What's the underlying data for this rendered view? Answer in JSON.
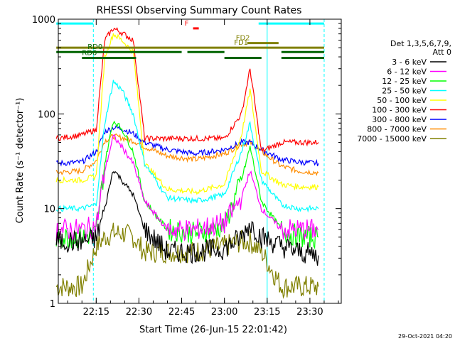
{
  "chart_data": {
    "type": "line",
    "title": "RHESSI Observing Summary Count Rates",
    "xlabel": "Start Time (26-Jun-15 22:01:42)",
    "ylabel": "Count Rate (s⁻¹ detector⁻¹)",
    "y_scale": "log",
    "xlim": [
      "22:01:42",
      "23:41:00"
    ],
    "ylim": [
      1,
      1000
    ],
    "x_ticks": [
      "22:15",
      "22:30",
      "22:45",
      "23:00",
      "23:15",
      "23:30"
    ],
    "y_ticks": [
      "1",
      "10",
      "100",
      "1000"
    ],
    "legend_title": "Det 1,3,5,6,7,9,",
    "legend_subtitle": "Att 0",
    "legend_position": "right",
    "timestamp": "29-Oct-2021 04:20",
    "series": [
      {
        "name": "3 - 6 keV",
        "color": "#000000",
        "x": [
          "22:01",
          "22:10",
          "22:15",
          "22:18",
          "22:21",
          "22:24",
          "22:28",
          "22:32",
          "22:40",
          "22:50",
          "23:00",
          "23:06",
          "23:09",
          "23:13",
          "23:20",
          "23:26",
          "23:33"
        ],
        "y": [
          4.5,
          4.5,
          4.8,
          10,
          26,
          20,
          14,
          6,
          3.5,
          3.5,
          3.8,
          5,
          7,
          5,
          4,
          3.5,
          3.2
        ]
      },
      {
        "name": "6 - 12 keV",
        "color": "#ff00ff",
        "x": [
          "22:01",
          "22:10",
          "22:15",
          "22:18",
          "22:21",
          "22:24",
          "22:28",
          "22:32",
          "22:40",
          "22:50",
          "23:00",
          "23:06",
          "23:09",
          "23:13",
          "23:20",
          "23:26",
          "23:33"
        ],
        "y": [
          6,
          6,
          6.5,
          25,
          58,
          45,
          30,
          12,
          6,
          6,
          7,
          13,
          25,
          10,
          6,
          6,
          6
        ]
      },
      {
        "name": "12 - 25 keV",
        "color": "#00ff00",
        "x": [
          "22:01",
          "22:10",
          "22:15",
          "22:18",
          "22:21",
          "22:24",
          "22:28",
          "22:32",
          "22:40",
          "22:50",
          "23:00",
          "23:06",
          "23:09",
          "23:13",
          "23:20",
          "23:26",
          "23:33"
        ],
        "y": [
          5,
          5,
          5.5,
          30,
          85,
          70,
          40,
          12,
          6,
          5.5,
          6.5,
          20,
          45,
          12,
          6,
          5,
          5
        ]
      },
      {
        "name": "25 - 50 keV",
        "color": "#00ffff",
        "x": [
          "22:01",
          "22:10",
          "22:15",
          "22:18",
          "22:21",
          "22:24",
          "22:28",
          "22:32",
          "22:40",
          "22:50",
          "23:00",
          "23:06",
          "23:09",
          "23:13",
          "23:20",
          "23:26",
          "23:33"
        ],
        "y": [
          10,
          10,
          11,
          80,
          220,
          180,
          100,
          30,
          13,
          12,
          14,
          40,
          80,
          20,
          11,
          10,
          10
        ]
      },
      {
        "name": "50 - 100 keV",
        "color": "#ffff00",
        "x": [
          "22:01",
          "22:10",
          "22:15",
          "22:18",
          "22:21",
          "22:24",
          "22:28",
          "22:32",
          "22:40",
          "22:50",
          "23:00",
          "23:06",
          "23:09",
          "23:13",
          "23:20",
          "23:26",
          "23:33"
        ],
        "y": [
          20,
          20,
          22,
          400,
          700,
          600,
          450,
          30,
          16,
          15,
          18,
          60,
          180,
          25,
          18,
          17,
          17
        ]
      },
      {
        "name": "100 - 300 keV",
        "color": "#ff0000",
        "x": [
          "22:01",
          "22:10",
          "22:15",
          "22:18",
          "22:21",
          "22:24",
          "22:28",
          "22:32",
          "22:40",
          "22:50",
          "23:00",
          "23:06",
          "23:09",
          "23:13",
          "23:20",
          "23:26",
          "23:33"
        ],
        "y": [
          55,
          60,
          68,
          600,
          800,
          720,
          600,
          55,
          55,
          55,
          55,
          100,
          300,
          40,
          50,
          50,
          50
        ]
      },
      {
        "name": "300 - 800 keV",
        "color": "#0000ff",
        "x": [
          "22:01",
          "22:10",
          "22:15",
          "22:18",
          "22:21",
          "22:24",
          "22:28",
          "22:32",
          "22:40",
          "22:50",
          "23:00",
          "23:06",
          "23:09",
          "23:13",
          "23:20",
          "23:26",
          "23:33"
        ],
        "y": [
          30,
          31,
          40,
          65,
          72,
          70,
          62,
          50,
          42,
          38,
          42,
          50,
          50,
          42,
          33,
          31,
          30
        ]
      },
      {
        "name": "800 - 7000 keV",
        "color": "#ff8c00",
        "x": [
          "22:01",
          "22:10",
          "22:15",
          "22:18",
          "22:21",
          "22:24",
          "22:28",
          "22:32",
          "22:40",
          "22:50",
          "23:00",
          "23:06",
          "23:09",
          "23:13",
          "23:20",
          "23:26",
          "23:33"
        ],
        "y": [
          24,
          25,
          32,
          52,
          58,
          56,
          52,
          45,
          36,
          33,
          38,
          48,
          50,
          40,
          28,
          25,
          24
        ]
      },
      {
        "name": "7000 - 15000 keV",
        "color": "#808000",
        "x": [
          "22:01",
          "22:10",
          "22:15",
          "22:18",
          "22:21",
          "22:24",
          "22:28",
          "22:32",
          "22:40",
          "22:50",
          "23:00",
          "23:06",
          "23:09",
          "23:13",
          "23:20",
          "23:26",
          "23:33"
        ],
        "y": [
          1.5,
          1.5,
          4,
          5,
          5.5,
          5.5,
          5,
          3.5,
          3.5,
          3.5,
          4,
          4.5,
          4.5,
          3.5,
          1.5,
          1.5,
          1.5
        ]
      }
    ],
    "flag_bars": [
      {
        "label": "",
        "color": "#00ffff",
        "segments": [
          [
            "22:01",
            "22:14"
          ],
          [
            "23:12",
            "23:35"
          ]
        ],
        "level": 900
      },
      {
        "label": "F",
        "color": "#ff0000",
        "segments": [
          [
            "22:49",
            "22:51"
          ]
        ],
        "level": 800
      },
      {
        "label": "FD1",
        "color": "#808000",
        "segments": [
          [
            "22:01",
            "23:35"
          ]
        ],
        "level": 500
      },
      {
        "label": "FD2",
        "color": "#808000",
        "segments": [
          [
            "23:08",
            "23:19"
          ]
        ],
        "level": 560
      },
      {
        "label": "RD0",
        "color": "#006400",
        "segments": [
          [
            "22:01",
            "22:45"
          ],
          [
            "22:47",
            "23:00"
          ],
          [
            "23:20",
            "23:35"
          ]
        ],
        "level": 450
      },
      {
        "label": "RD6",
        "color": "#006400",
        "segments": [
          [
            "22:10",
            "22:29"
          ],
          [
            "23:00",
            "23:13"
          ],
          [
            "23:20",
            "23:35"
          ]
        ],
        "level": 390
      }
    ],
    "vertical_markers": [
      {
        "time": "22:14",
        "color": "#00ffff",
        "style": "dashed"
      },
      {
        "time": "23:35",
        "color": "#00ffff",
        "style": "dashed"
      },
      {
        "time": "23:15",
        "color": "#00ffff",
        "style": "solid"
      }
    ]
  }
}
